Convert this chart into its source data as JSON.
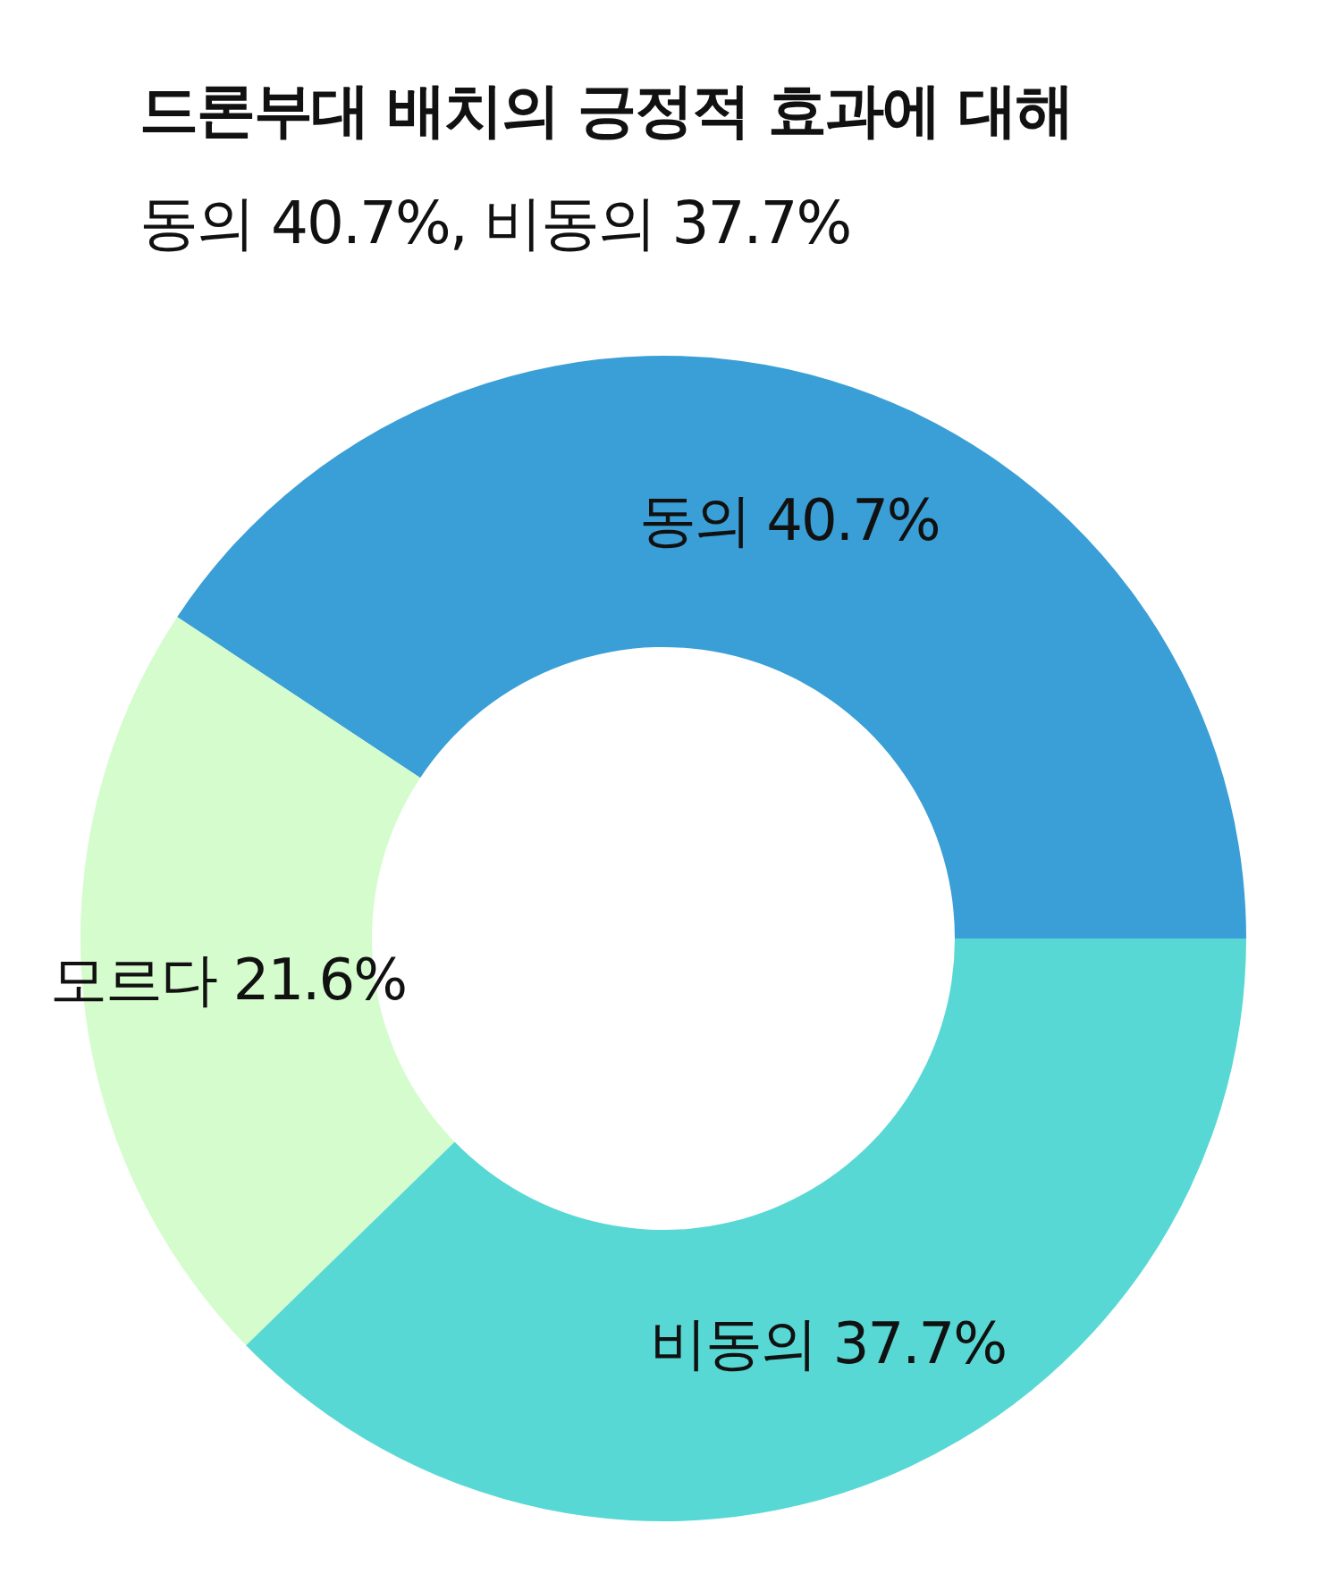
{
  "chart_data": {
    "type": "donut",
    "title": "드론부대 배치의 긍정적 효과에 대해",
    "subtitle": "동의 40.7%, 비동의 37.7%",
    "categories": [
      "동의",
      "모르다",
      "비동의"
    ],
    "values": [
      40.7,
      21.6,
      37.7
    ],
    "value_labels": [
      "40.7%",
      "21.6%",
      "37.7%"
    ],
    "colors": [
      "#3a9fd6",
      "#d4fccc",
      "#58d8d4"
    ],
    "legend": false
  }
}
